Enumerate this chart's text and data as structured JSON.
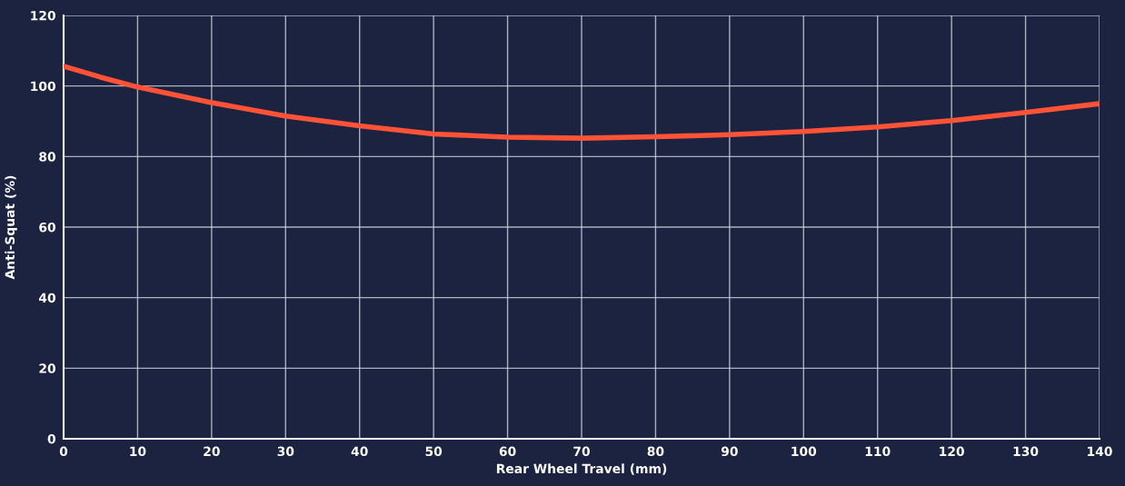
{
  "chart_data": {
    "type": "line",
    "xlabel": "Rear Wheel Travel (mm)",
    "ylabel": "Anti-Squat (%)",
    "x": [
      0,
      5,
      10,
      20,
      30,
      40,
      50,
      60,
      70,
      80,
      90,
      100,
      110,
      120,
      130,
      140
    ],
    "series": [
      {
        "color": "#ff5236",
        "values": [
          105.6,
          102.5,
          99.7,
          95.3,
          91.5,
          88.7,
          86.4,
          85.5,
          85.2,
          85.6,
          86.2,
          87.1,
          88.4,
          90.2,
          92.5,
          95.0
        ]
      }
    ],
    "xlim": [
      0,
      140
    ],
    "xticks": [
      0,
      10,
      20,
      30,
      40,
      50,
      60,
      70,
      80,
      90,
      100,
      110,
      120,
      130,
      140
    ],
    "ylim": [
      0,
      120
    ],
    "yticks": [
      0,
      20,
      40,
      60,
      80,
      100,
      120
    ],
    "grid": true,
    "marker": "none",
    "line_style": "solid"
  }
}
